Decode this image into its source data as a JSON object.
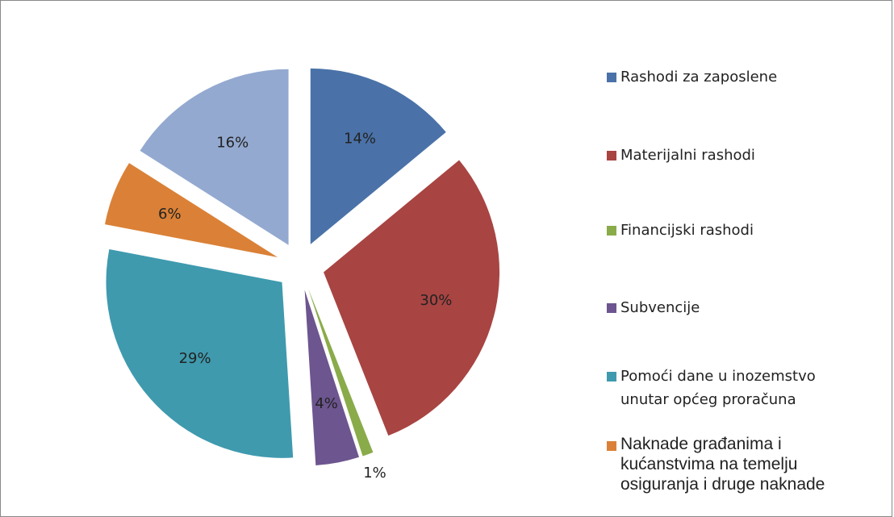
{
  "chart_data": {
    "type": "pie",
    "categories": [
      "Rashodi za zaposlene",
      "Materijalni rashodi",
      "Financijski rashodi",
      "Subvencije",
      "Pomoći dane u inozemstvo unutar općeg proračuna",
      "Naknade građanima i kućanstvima na temelju osiguranja i druge naknade",
      null
    ],
    "values": [
      14,
      30,
      1,
      4,
      29,
      6,
      16
    ],
    "value_labels": [
      "14%",
      "30%",
      "1%",
      "4%",
      "29%",
      "6%",
      "16%"
    ],
    "colors": [
      "#4a72a8",
      "#a84442",
      "#8aab4a",
      "#6d558f",
      "#3f9aae",
      "#da8137",
      "#93a9d0"
    ]
  }
}
